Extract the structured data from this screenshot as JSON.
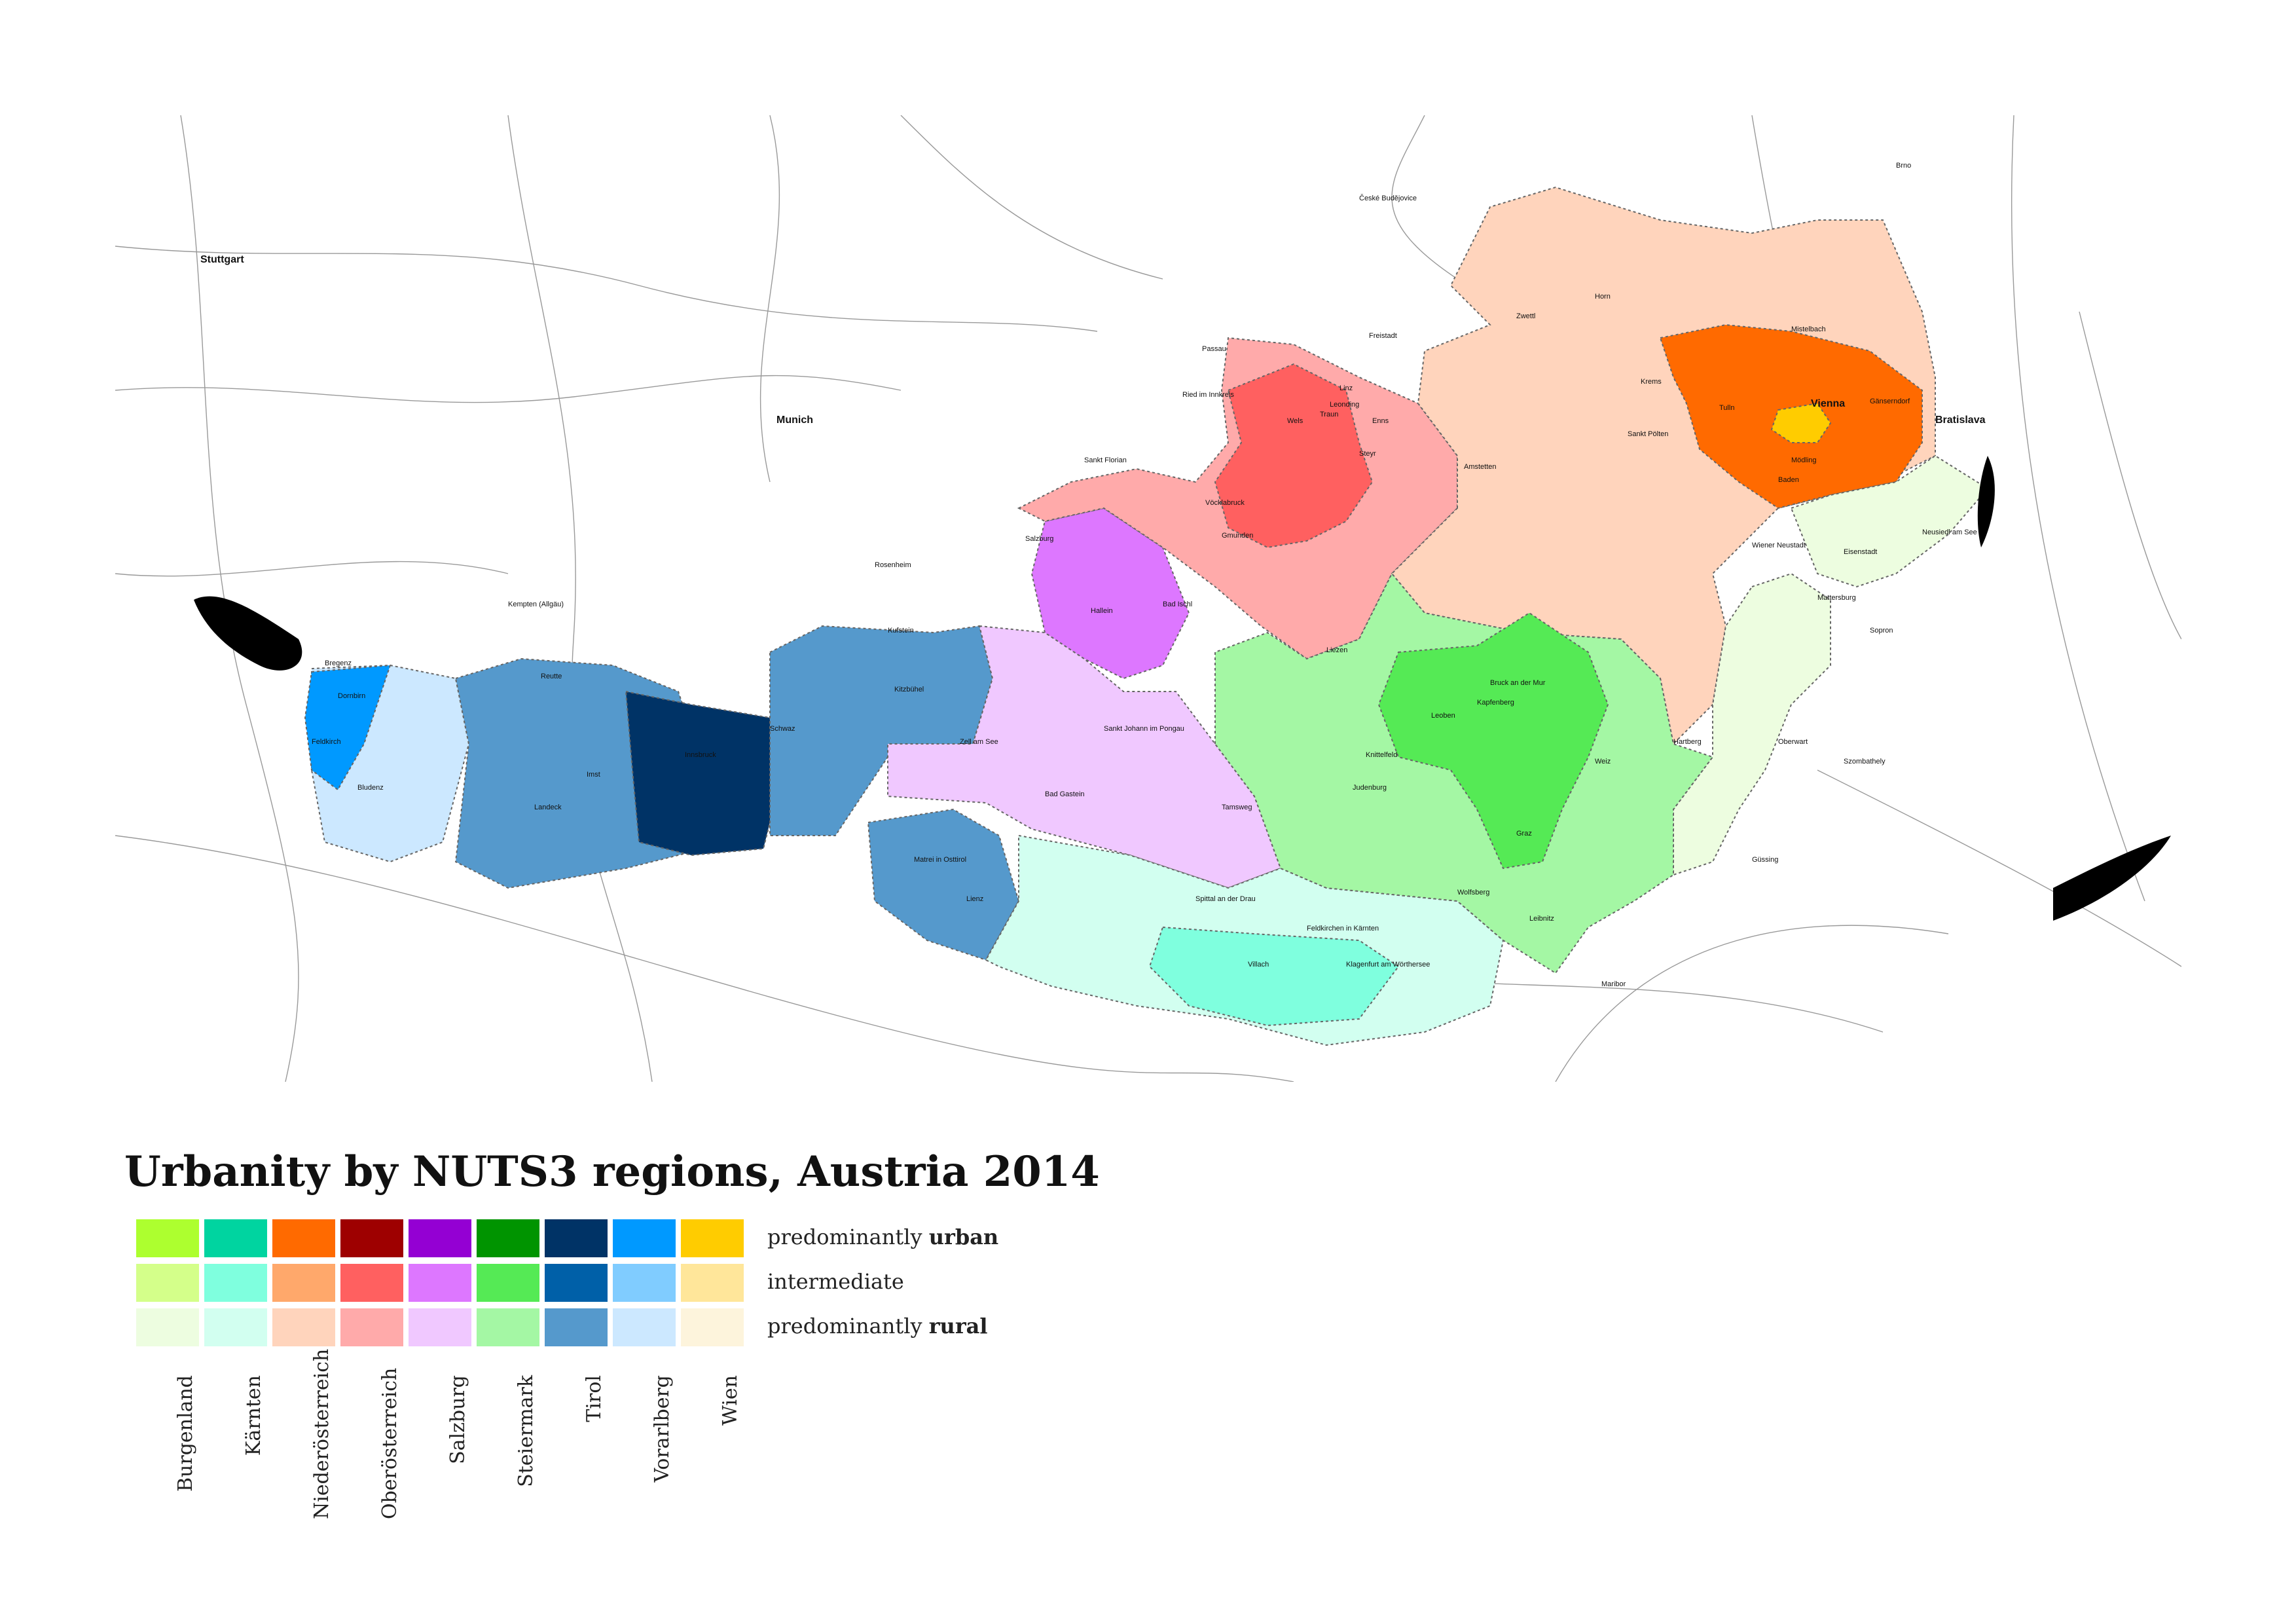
{
  "map": {
    "places": [
      {
        "name": "Vienna",
        "major": true
      },
      {
        "name": "Bratislava",
        "major": true
      },
      {
        "name": "Munich",
        "major": true
      },
      {
        "name": "Stuttgart",
        "major": true
      },
      {
        "name": "Linz"
      },
      {
        "name": "Leonding"
      },
      {
        "name": "Wels"
      },
      {
        "name": "Traun"
      },
      {
        "name": "Enns"
      },
      {
        "name": "Steyr"
      },
      {
        "name": "Freistadt"
      },
      {
        "name": "Sankt Florian"
      },
      {
        "name": "Ried im Innkreis"
      },
      {
        "name": "Vöcklabruck"
      },
      {
        "name": "Gmunden"
      },
      {
        "name": "Bad Ischl"
      },
      {
        "name": "Salzburg"
      },
      {
        "name": "Hallein"
      },
      {
        "name": "Zell am See"
      },
      {
        "name": "Bad Gastein"
      },
      {
        "name": "Sankt Johann im Pongau"
      },
      {
        "name": "Tamsweg"
      },
      {
        "name": "Innsbruck"
      },
      {
        "name": "Kufstein"
      },
      {
        "name": "Kitzbühel"
      },
      {
        "name": "Schwaz"
      },
      {
        "name": "Landeck"
      },
      {
        "name": "Imst"
      },
      {
        "name": "Reutte"
      },
      {
        "name": "Lienz"
      },
      {
        "name": "Matrei in Osttirol"
      },
      {
        "name": "Bregenz"
      },
      {
        "name": "Dornbirn"
      },
      {
        "name": "Feldkirch"
      },
      {
        "name": "Bludenz"
      },
      {
        "name": "Graz"
      },
      {
        "name": "Leoben"
      },
      {
        "name": "Kapfenberg"
      },
      {
        "name": "Bruck an der Mur"
      },
      {
        "name": "Judenburg"
      },
      {
        "name": "Knittelfeld"
      },
      {
        "name": "Weiz"
      },
      {
        "name": "Hartberg"
      },
      {
        "name": "Leibnitz"
      },
      {
        "name": "Liezen"
      },
      {
        "name": "Klagenfurt am Wörthersee"
      },
      {
        "name": "Villach"
      },
      {
        "name": "Wolfsberg"
      },
      {
        "name": "Spittal an der Drau"
      },
      {
        "name": "Feldkirchen in Kärnten"
      },
      {
        "name": "Sankt Pölten"
      },
      {
        "name": "Krems"
      },
      {
        "name": "Wiener Neustadt"
      },
      {
        "name": "Baden"
      },
      {
        "name": "Mödling"
      },
      {
        "name": "Tulln"
      },
      {
        "name": "Horn"
      },
      {
        "name": "Zwettl"
      },
      {
        "name": "Amstetten"
      },
      {
        "name": "Mistelbach"
      },
      {
        "name": "Gänserndorf"
      },
      {
        "name": "Eisenstadt"
      },
      {
        "name": "Neusiedl am See"
      },
      {
        "name": "Mattersburg"
      },
      {
        "name": "Oberwart"
      },
      {
        "name": "Güssing"
      },
      {
        "name": "Szombathely"
      },
      {
        "name": "Sopron"
      },
      {
        "name": "Maribor"
      },
      {
        "name": "Passau"
      },
      {
        "name": "Rosenheim"
      },
      {
        "name": "Kempten (Allgäu)"
      },
      {
        "name": "Brno"
      },
      {
        "name": "České Budějovice"
      }
    ]
  },
  "legend": {
    "title": "Urbanity by NUTS3 regions, Austria 2014",
    "rows": [
      {
        "prefix": "predominantly ",
        "bold": "urban"
      },
      {
        "prefix": "intermediate",
        "bold": ""
      },
      {
        "prefix": "predominantly ",
        "bold": "rural"
      }
    ],
    "columns": [
      {
        "name": "Burgenland",
        "colors": [
          "#adff2f",
          "#d4ff8a",
          "#edfde0"
        ]
      },
      {
        "name": "Kärnten",
        "colors": [
          "#00d4a0",
          "#7fffde",
          "#d2fff0"
        ]
      },
      {
        "name": "Niederösterreich",
        "colors": [
          "#ff6a00",
          "#ffa86b",
          "#ffd4bc"
        ]
      },
      {
        "name": "Oberösterreich",
        "colors": [
          "#9e0000",
          "#ff6060",
          "#ffaaaa"
        ]
      },
      {
        "name": "Salzburg",
        "colors": [
          "#9400d3",
          "#dd77ff",
          "#f0c8ff"
        ]
      },
      {
        "name": "Steiermark",
        "colors": [
          "#009400",
          "#55ea55",
          "#a4f7a4"
        ]
      },
      {
        "name": "Tirol",
        "colors": [
          "#003366",
          "#0060a8",
          "#5599cc"
        ]
      },
      {
        "name": "Vorarlberg",
        "colors": [
          "#0099ff",
          "#80ccff",
          "#cce8ff"
        ]
      },
      {
        "name": "Wien",
        "colors": [
          "#ffcc00",
          "#ffe69a",
          "#fdf4dc"
        ]
      }
    ]
  }
}
